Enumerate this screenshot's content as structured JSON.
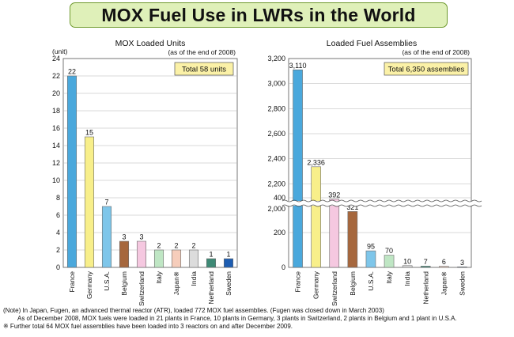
{
  "title": "MOX Fuel Use in LWRs in the World",
  "chart_data": [
    {
      "type": "bar",
      "title": "MOX Loaded Units",
      "subtitle": "(as of the end of 2008)",
      "unit_label": "(unit)",
      "total_label": "Total 58 units",
      "categories": [
        "France",
        "Germany",
        "U.S.A.",
        "Belgium",
        "Switzerland",
        "Italy",
        "Japan※",
        "India",
        "Netherland",
        "Sweden"
      ],
      "values": [
        22,
        15,
        7,
        3,
        3,
        2,
        2,
        2,
        1,
        1
      ],
      "value_labels": [
        "22",
        "15",
        "7",
        "3",
        "3",
        "2",
        "2",
        "2",
        "1",
        "1"
      ],
      "colors": [
        "#4aa8dc",
        "#f8ef8a",
        "#7ec6ea",
        "#a6673d",
        "#f5c8e0",
        "#bfe6c4",
        "#f6cdbb",
        "#dcdcdc",
        "#3e8a76",
        "#1d5db2"
      ],
      "ylim": [
        0,
        24
      ],
      "yticks": [
        "0",
        "2",
        "4",
        "6",
        "8",
        "10",
        "12",
        "14",
        "16",
        "18",
        "20",
        "22",
        "24"
      ],
      "grid": true
    },
    {
      "type": "bar",
      "title": "Loaded Fuel Assemblies",
      "subtitle": "(as of the end of 2008)",
      "total_label": "Total 6,350 assemblies",
      "categories": [
        "France",
        "Germany",
        "Switzerland",
        "Belgium",
        "U.S.A.",
        "Italy",
        "India",
        "Netherland",
        "Japan※",
        "Sweden"
      ],
      "values": [
        3110,
        2336,
        392,
        321,
        95,
        70,
        10,
        7,
        6,
        3
      ],
      "value_labels": [
        "3,110",
        "2,336",
        "392",
        "321",
        "95",
        "70",
        "10",
        "7",
        "6",
        "3"
      ],
      "colors": [
        "#4aa8dc",
        "#f8ef8a",
        "#f5c8e0",
        "#a6673d",
        "#7ec6ea",
        "#bfe6c4",
        "#dcdcdc",
        "#3e8a76",
        "#f6cdbb",
        "#1d5db2"
      ],
      "ylim": [
        0,
        3200
      ],
      "axis_break": [
        400,
        2000
      ],
      "yticks_lower": [
        "0",
        "200",
        "400"
      ],
      "yticks_upper": [
        "2,000",
        "2,200",
        "2,400",
        "2,600",
        "2,800",
        "3,000",
        "3,200"
      ],
      "grid": true
    }
  ],
  "notes": [
    "(Note) In Japan, Fugen, an advanced thermal reactor (ATR), loaded 772 MOX fuel assemblies. (Fugen was closed down in March 2003)",
    "As of December 2008, MOX fuels were loaded in 21 plants in France, 10 plants in Germany, 3 plants in Switzerland, 2 plants in Belgium and 1 plant in U.S.A.",
    "※ Further total 64 MOX fuel assemblies have been loaded into 3 reactors on and after December 2009."
  ]
}
